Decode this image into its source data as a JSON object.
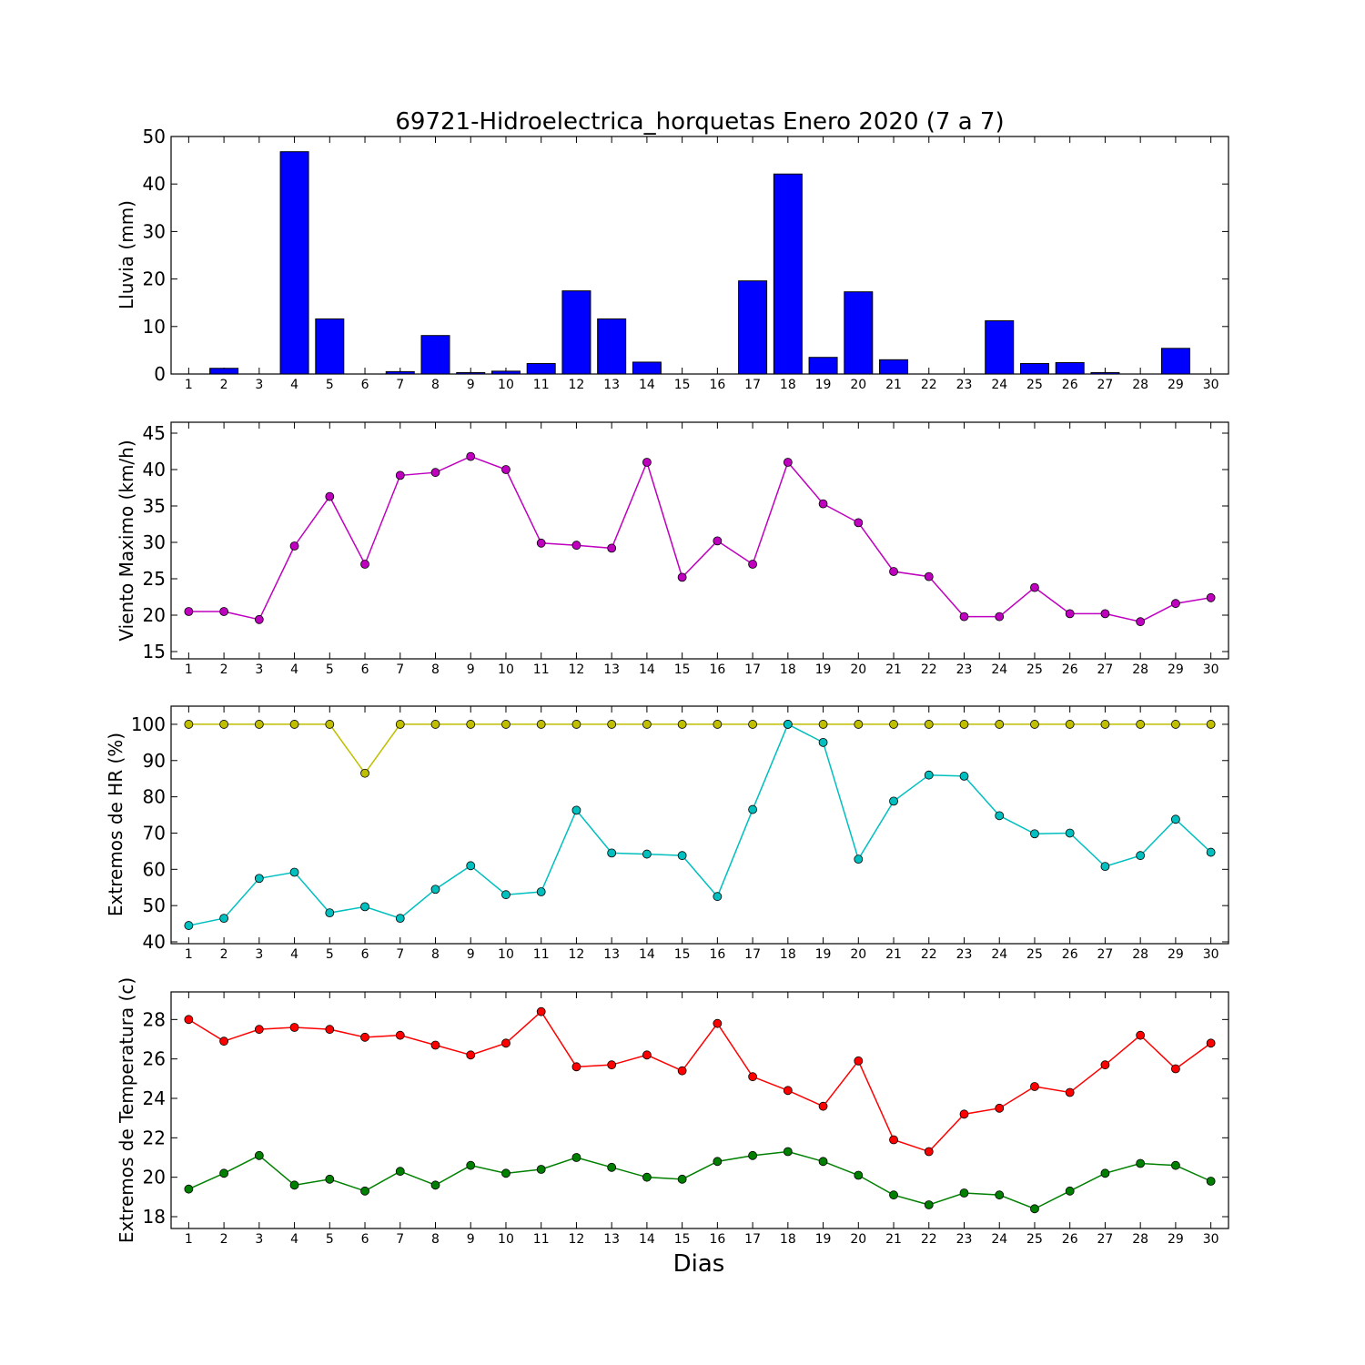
{
  "chart_data": [
    {
      "type": "bar",
      "title": "69721-Hidroelectrica_horquetas Enero 2020  (7 a 7)",
      "ylabel": "Lluvia (mm)",
      "xlabel": "",
      "ylim": [
        0,
        50
      ],
      "yticks": [
        0,
        10,
        20,
        30,
        40,
        50
      ],
      "categories": [
        1,
        2,
        3,
        4,
        5,
        6,
        7,
        8,
        9,
        10,
        11,
        12,
        13,
        14,
        15,
        16,
        17,
        18,
        19,
        20,
        21,
        22,
        23,
        24,
        25,
        26,
        27,
        28,
        29,
        30
      ],
      "series": [
        {
          "color": "#0000ff",
          "values": [
            0.0,
            1.2,
            0.0,
            46.8,
            11.6,
            0.0,
            0.5,
            8.1,
            0.3,
            0.6,
            2.2,
            17.5,
            11.6,
            2.5,
            0.0,
            0.0,
            19.6,
            42.1,
            3.5,
            17.3,
            3.0,
            0.0,
            0.0,
            11.2,
            2.2,
            2.4,
            0.3,
            0.0,
            5.4,
            0.0
          ]
        }
      ]
    },
    {
      "type": "line",
      "title": "",
      "ylabel": "Viento Maximo (km/h)",
      "xlabel": "",
      "ylim": [
        14,
        46.5
      ],
      "yticks": [
        15,
        20,
        25,
        30,
        35,
        40,
        45
      ],
      "categories": [
        1,
        2,
        3,
        4,
        5,
        6,
        7,
        8,
        9,
        10,
        11,
        12,
        13,
        14,
        15,
        16,
        17,
        18,
        19,
        20,
        21,
        22,
        23,
        24,
        25,
        26,
        27,
        28,
        29,
        30
      ],
      "series": [
        {
          "color": "#bf00bf",
          "values": [
            20.5,
            20.5,
            19.4,
            29.5,
            36.3,
            27.0,
            39.2,
            39.6,
            41.8,
            40.0,
            29.9,
            29.6,
            29.2,
            41.0,
            25.2,
            30.2,
            27.0,
            41.0,
            35.3,
            32.7,
            26.0,
            25.3,
            19.8,
            19.8,
            23.8,
            20.2,
            20.2,
            19.1,
            21.6,
            22.4
          ]
        }
      ]
    },
    {
      "type": "line",
      "title": "",
      "ylabel": "Extremos de HR (%)",
      "xlabel": "",
      "ylim": [
        39.5,
        105
      ],
      "yticks": [
        40,
        50,
        60,
        70,
        80,
        90,
        100
      ],
      "categories": [
        1,
        2,
        3,
        4,
        5,
        6,
        7,
        8,
        9,
        10,
        11,
        12,
        13,
        14,
        15,
        16,
        17,
        18,
        19,
        20,
        21,
        22,
        23,
        24,
        25,
        26,
        27,
        28,
        29,
        30
      ],
      "series": [
        {
          "color": "#bfbf00",
          "values": [
            100,
            100,
            100,
            100,
            100,
            86.5,
            100,
            100,
            100,
            100,
            100,
            100,
            100,
            100,
            100,
            100,
            100,
            100,
            100,
            100,
            100,
            100,
            100,
            100,
            100,
            100,
            100,
            100,
            100,
            100
          ]
        },
        {
          "color": "#00bfbf",
          "values": [
            44.5,
            46.5,
            57.5,
            59.2,
            48.0,
            49.7,
            46.5,
            54.5,
            61.0,
            53.0,
            53.8,
            76.3,
            64.5,
            64.2,
            63.8,
            52.5,
            76.5,
            100,
            95.0,
            62.8,
            78.8,
            86.0,
            85.7,
            74.8,
            69.8,
            70.0,
            60.8,
            63.8,
            73.8,
            64.7
          ]
        }
      ]
    },
    {
      "type": "line",
      "title": "",
      "ylabel": "Extremos de Temperatura (c)",
      "xlabel": "Dias",
      "ylim": [
        17.4,
        29.4
      ],
      "yticks": [
        18,
        20,
        22,
        24,
        26,
        28
      ],
      "categories": [
        1,
        2,
        3,
        4,
        5,
        6,
        7,
        8,
        9,
        10,
        11,
        12,
        13,
        14,
        15,
        16,
        17,
        18,
        19,
        20,
        21,
        22,
        23,
        24,
        25,
        26,
        27,
        28,
        29,
        30
      ],
      "series": [
        {
          "color": "#ff0000",
          "values": [
            28.0,
            26.9,
            27.5,
            27.6,
            27.5,
            27.1,
            27.2,
            26.7,
            26.2,
            26.8,
            28.4,
            25.6,
            25.7,
            26.2,
            25.4,
            27.8,
            25.1,
            24.4,
            23.6,
            25.9,
            21.9,
            21.3,
            23.2,
            23.5,
            24.6,
            24.3,
            25.7,
            27.2,
            25.5,
            26.8
          ]
        },
        {
          "color": "#008000",
          "values": [
            19.4,
            20.2,
            21.1,
            19.6,
            19.9,
            19.3,
            20.3,
            19.6,
            20.6,
            20.2,
            20.4,
            21.0,
            20.5,
            20.0,
            19.9,
            20.8,
            21.1,
            21.3,
            20.8,
            20.1,
            19.1,
            18.6,
            19.2,
            19.1,
            18.4,
            19.3,
            20.2,
            20.7,
            20.6,
            19.8
          ]
        }
      ]
    }
  ]
}
